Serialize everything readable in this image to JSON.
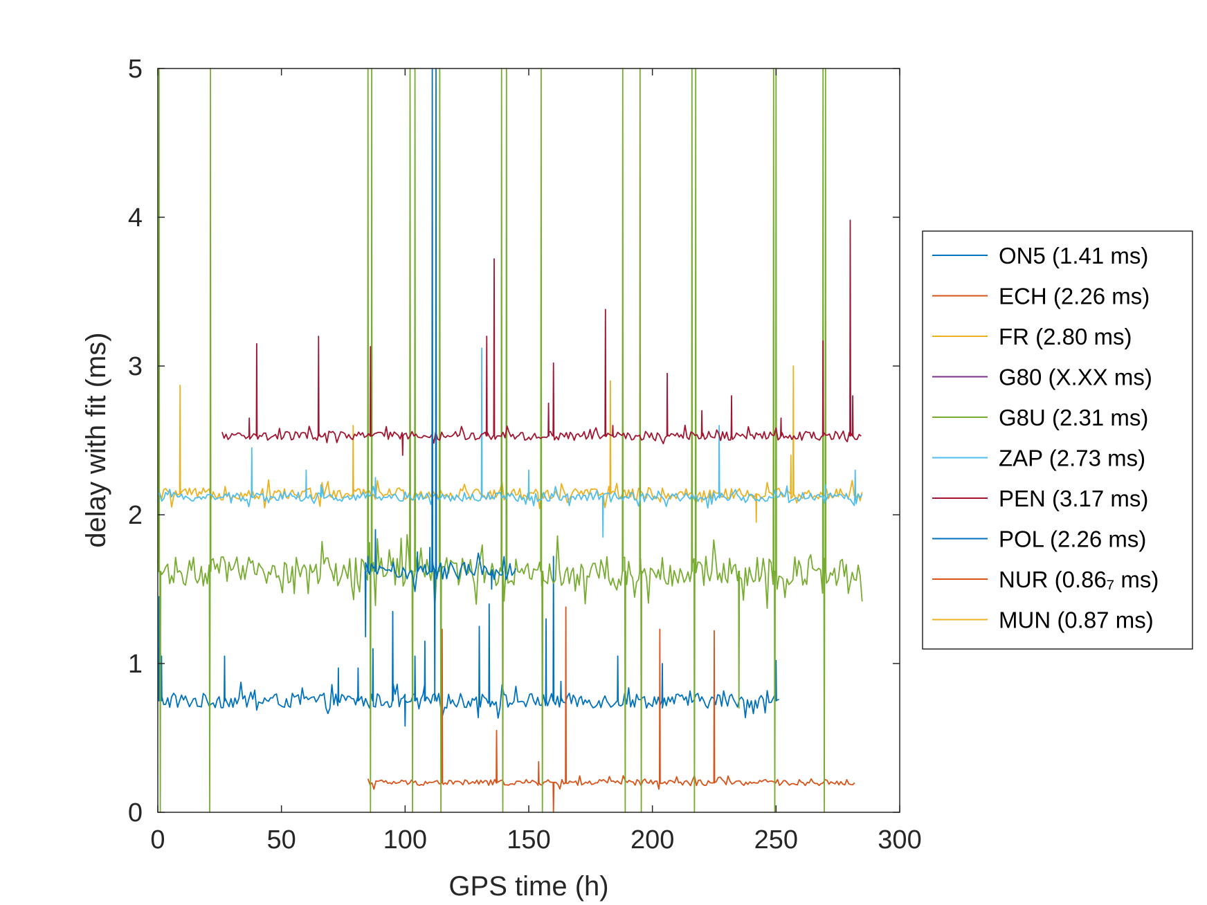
{
  "chart_data": {
    "type": "line",
    "xlabel": "GPS time (h)",
    "ylabel": "delay with fit (ms)",
    "xlim": [
      0,
      300
    ],
    "ylim": [
      0,
      5
    ],
    "xticks": [
      0,
      50,
      100,
      150,
      200,
      250,
      300
    ],
    "yticks": [
      0,
      1,
      2,
      3,
      4,
      5
    ],
    "grid": false,
    "legend_position": "right-outside",
    "series": [
      {
        "name": "ON5 (1.41 ms)",
        "color": "#0072bd",
        "kind": "baseline",
        "base": 0.75,
        "noise": 0.05,
        "x_start": 0,
        "x_end": 252,
        "spikes": [
          [
            0.5,
            1.45
          ],
          [
            1.5,
            1.05
          ],
          [
            27,
            1.05
          ],
          [
            73,
            0.97
          ],
          [
            81,
            0.97
          ],
          [
            87,
            1.1
          ],
          [
            95,
            1.35
          ],
          [
            100,
            0.58
          ],
          [
            104,
            1.05
          ],
          [
            108,
            1.15
          ],
          [
            130,
            1.25
          ],
          [
            134,
            1.4
          ],
          [
            157,
            1.3
          ],
          [
            160,
            1.72
          ],
          [
            163,
            0.88
          ],
          [
            186,
            1.05
          ],
          [
            204,
            1.0
          ],
          [
            250,
            1.02
          ]
        ]
      },
      {
        "name": "ECH (2.26 ms)",
        "color": "#d95319",
        "kind": "baseline",
        "base": 0.2,
        "noise": 0.02,
        "x_start": 85,
        "x_end": 282,
        "spikes": [
          [
            115,
            1.23
          ],
          [
            137,
            0.55
          ],
          [
            154,
            0.34
          ],
          [
            160,
            0.0
          ],
          [
            165,
            1.38
          ],
          [
            203,
            1.23
          ],
          [
            225,
            1.22
          ]
        ]
      },
      {
        "name": "FR (2.80 ms)",
        "color": "#edb120",
        "kind": "baseline",
        "base": 2.14,
        "noise": 0.04,
        "x_start": 0,
        "x_end": 285,
        "spikes": [
          [
            9,
            2.87
          ],
          [
            79,
            2.6
          ],
          [
            183,
            2.9
          ],
          [
            242,
            1.95
          ],
          [
            256,
            2.4
          ],
          [
            257,
            3.0
          ]
        ]
      },
      {
        "name": "G80 (X.XX ms)",
        "color": "#7e2f8e",
        "kind": "none",
        "spikes": []
      },
      {
        "name": "G8U (2.31 ms)",
        "color": "#77ac30",
        "kind": "baseline",
        "base": 1.62,
        "noise": 0.1,
        "x_start": 0,
        "x_end": 285,
        "spikes": [
          [
            0.5,
            5.0
          ],
          [
            1,
            0.0
          ],
          [
            21,
            0.0
          ],
          [
            21.3,
            5.0
          ],
          [
            85,
            5.0
          ],
          [
            86,
            0.0
          ],
          [
            86.5,
            5.0
          ],
          [
            102,
            5.0
          ],
          [
            103,
            0.0
          ],
          [
            104,
            5.0
          ],
          [
            114,
            5.0
          ],
          [
            114.5,
            0.0
          ],
          [
            139,
            5.0
          ],
          [
            139.5,
            0.0
          ],
          [
            141,
            5.0
          ],
          [
            155,
            5.0
          ],
          [
            155.5,
            0.0
          ],
          [
            188,
            5.0
          ],
          [
            189,
            0.0
          ],
          [
            195,
            5.0
          ],
          [
            195.5,
            0.0
          ],
          [
            216,
            5.0
          ],
          [
            217,
            0.0
          ],
          [
            217.5,
            5.0
          ],
          [
            235,
            0.7
          ],
          [
            249,
            5.0
          ],
          [
            249.5,
            0.0
          ],
          [
            250,
            5.0
          ],
          [
            269,
            5.0
          ],
          [
            269.5,
            0.0
          ],
          [
            270,
            5.0
          ]
        ]
      },
      {
        "name": "ZAP (2.73 ms)",
        "color": "#4dbeee",
        "kind": "baseline",
        "base": 2.12,
        "noise": 0.03,
        "x_start": 0,
        "x_end": 285,
        "spikes": [
          [
            38,
            2.45
          ],
          [
            60,
            2.3
          ],
          [
            66,
            2.2
          ],
          [
            88,
            2.25
          ],
          [
            131,
            3.12
          ],
          [
            150,
            2.3
          ],
          [
            180,
            1.85
          ],
          [
            227,
            2.6
          ],
          [
            270,
            2.2
          ],
          [
            282,
            2.3
          ]
        ]
      },
      {
        "name": "PEN (3.17 ms)",
        "color": "#a2142f",
        "kind": "baseline",
        "base": 2.53,
        "noise": 0.03,
        "x_start": 26,
        "x_end": 285,
        "spikes": [
          [
            37,
            2.65
          ],
          [
            40,
            3.15
          ],
          [
            65,
            3.2
          ],
          [
            86,
            3.13
          ],
          [
            99,
            2.4
          ],
          [
            133,
            3.2
          ],
          [
            136,
            3.72
          ],
          [
            158,
            2.75
          ],
          [
            160,
            3.02
          ],
          [
            181,
            3.38
          ],
          [
            184,
            2.6
          ],
          [
            206,
            2.95
          ],
          [
            220,
            2.7
          ],
          [
            232,
            2.8
          ],
          [
            252,
            2.65
          ],
          [
            269,
            3.17
          ],
          [
            280,
            3.98
          ],
          [
            281,
            2.8
          ]
        ]
      },
      {
        "name": "POL (2.26 ms)",
        "color": "#0072bd",
        "kind": "baseline",
        "base": 1.62,
        "noise": 0.06,
        "x_start": 84,
        "x_end": 145,
        "spikes": [
          [
            84,
            1.18
          ],
          [
            85,
            1.72
          ],
          [
            88,
            1.9
          ],
          [
            105,
            1.75
          ],
          [
            110,
            1.78
          ],
          [
            111,
            5.0
          ],
          [
            112,
            0.75
          ],
          [
            112.5,
            5.0
          ],
          [
            135,
            1.5
          ]
        ]
      },
      {
        "name": "NUR (0.86₇ ms)",
        "color": "#d95319",
        "kind": "none",
        "spikes": []
      },
      {
        "name": "MUN (0.87 ms)",
        "color": "#edb120",
        "kind": "none",
        "spikes": []
      }
    ]
  }
}
